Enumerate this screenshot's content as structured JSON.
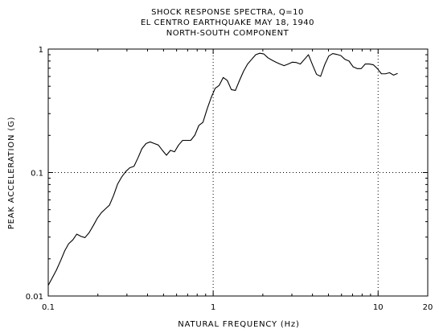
{
  "chart_data": {
    "type": "line",
    "title_lines": [
      "SHOCK RESPONSE SPECTRA,  Q=10",
      "EL CENTRO EARTHQUAKE  MAY 18, 1940",
      "NORTH-SOUTH COMPONENT"
    ],
    "xlabel": "NATURAL FREQUENCY (Hz)",
    "ylabel": "PEAK ACCELERATION (G)",
    "x_scale": "log",
    "y_scale": "log",
    "xlim": [
      0.1,
      20
    ],
    "ylim": [
      0.01,
      1
    ],
    "x_ticks": [
      {
        "value": 0.1,
        "label": "0.1"
      },
      {
        "value": 1,
        "label": "1"
      },
      {
        "value": 10,
        "label": "10"
      },
      {
        "value": 20,
        "label": "20"
      }
    ],
    "y_ticks": [
      {
        "value": 0.01,
        "label": "0.01"
      },
      {
        "value": 0.1,
        "label": "0.1"
      },
      {
        "value": 1,
        "label": "1"
      }
    ],
    "grid": "dotted at decades",
    "line_color": "#000000",
    "series": [
      {
        "points": [
          [
            0.1,
            0.0122
          ],
          [
            0.106,
            0.0141
          ],
          [
            0.112,
            0.0162
          ],
          [
            0.119,
            0.0194
          ],
          [
            0.126,
            0.0233
          ],
          [
            0.133,
            0.0265
          ],
          [
            0.141,
            0.0285
          ],
          [
            0.149,
            0.0317
          ],
          [
            0.158,
            0.0304
          ],
          [
            0.167,
            0.0297
          ],
          [
            0.177,
            0.0326
          ],
          [
            0.188,
            0.0374
          ],
          [
            0.199,
            0.0429
          ],
          [
            0.21,
            0.0473
          ],
          [
            0.222,
            0.0507
          ],
          [
            0.235,
            0.0544
          ],
          [
            0.249,
            0.0653
          ],
          [
            0.263,
            0.0803
          ],
          [
            0.279,
            0.0922
          ],
          [
            0.295,
            0.1018
          ],
          [
            0.312,
            0.1092
          ],
          [
            0.331,
            0.1123
          ],
          [
            0.35,
            0.1314
          ],
          [
            0.37,
            0.1563
          ],
          [
            0.392,
            0.1719
          ],
          [
            0.415,
            0.177
          ],
          [
            0.439,
            0.1719
          ],
          [
            0.465,
            0.167
          ],
          [
            0.492,
            0.1514
          ],
          [
            0.521,
            0.138
          ],
          [
            0.551,
            0.1514
          ],
          [
            0.583,
            0.1472
          ],
          [
            0.617,
            0.167
          ],
          [
            0.653,
            0.1822
          ],
          [
            0.691,
            0.1822
          ],
          [
            0.731,
            0.1822
          ],
          [
            0.774,
            0.2005
          ],
          [
            0.819,
            0.2409
          ],
          [
            0.867,
            0.2552
          ],
          [
            0.918,
            0.3254
          ],
          [
            0.971,
            0.4028
          ],
          [
            1.028,
            0.4808
          ],
          [
            1.088,
            0.5078
          ],
          [
            1.151,
            0.5888
          ],
          [
            1.218,
            0.5569
          ],
          [
            1.289,
            0.4692
          ],
          [
            1.364,
            0.4624
          ],
          [
            1.444,
            0.5569
          ],
          [
            1.528,
            0.661
          ],
          [
            1.617,
            0.7567
          ],
          [
            1.711,
            0.8253
          ],
          [
            1.811,
            0.8998
          ],
          [
            1.917,
            0.9253
          ],
          [
            2.029,
            0.9126
          ],
          [
            2.147,
            0.8501
          ],
          [
            2.272,
            0.8137
          ],
          [
            2.404,
            0.7827
          ],
          [
            2.544,
            0.7566
          ],
          [
            2.692,
            0.7336
          ],
          [
            2.849,
            0.7566
          ],
          [
            3.015,
            0.7827
          ],
          [
            3.191,
            0.778
          ],
          [
            3.377,
            0.7566
          ],
          [
            3.574,
            0.8253
          ],
          [
            3.782,
            0.8998
          ],
          [
            4.002,
            0.746
          ],
          [
            4.235,
            0.624
          ],
          [
            4.482,
            0.6016
          ],
          [
            4.743,
            0.746
          ],
          [
            5.02,
            0.8779
          ],
          [
            5.312,
            0.9196
          ],
          [
            5.621,
            0.905
          ],
          [
            5.949,
            0.8852
          ],
          [
            6.295,
            0.8253
          ],
          [
            6.662,
            0.8001
          ],
          [
            7.05,
            0.7195
          ],
          [
            7.461,
            0.6944
          ],
          [
            7.896,
            0.6944
          ],
          [
            8.356,
            0.7566
          ],
          [
            8.842,
            0.7566
          ],
          [
            9.357,
            0.746
          ],
          [
            9.902,
            0.6944
          ],
          [
            10.479,
            0.6305
          ],
          [
            11.089,
            0.6305
          ],
          [
            11.735,
            0.6437
          ],
          [
            12.418,
            0.615
          ],
          [
            13.141,
            0.635
          ]
        ]
      }
    ]
  }
}
